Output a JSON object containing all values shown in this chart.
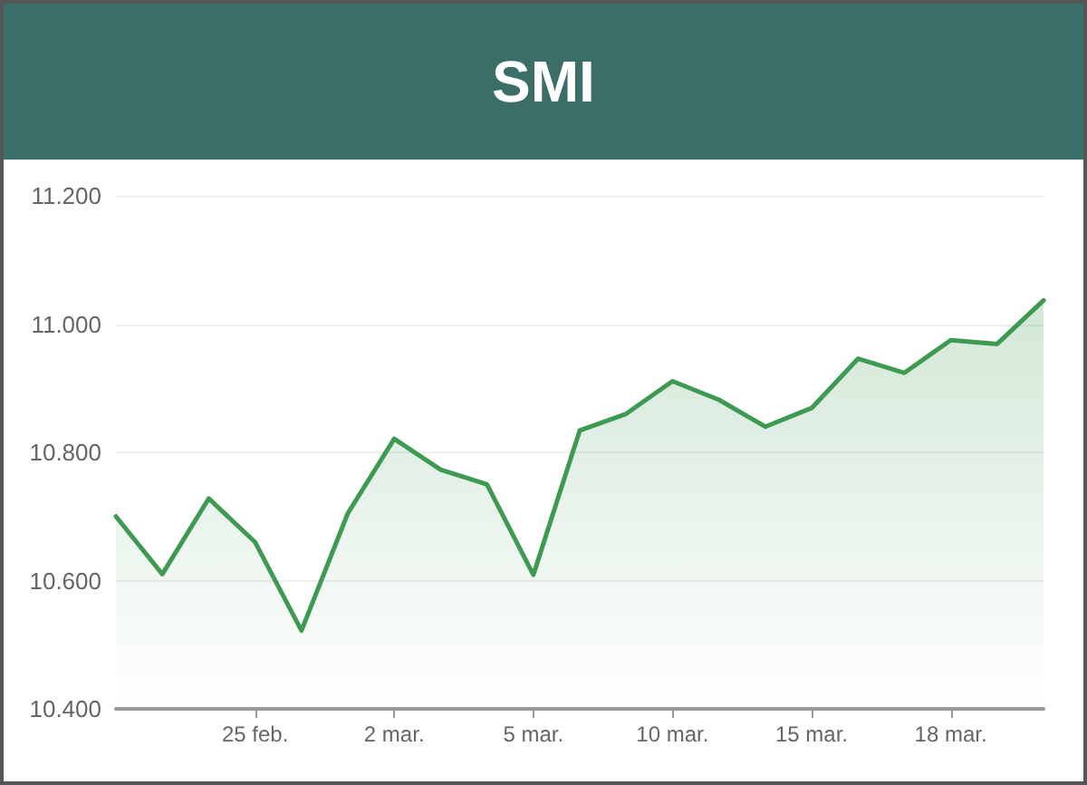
{
  "chart_data": {
    "type": "area",
    "title": "SMI",
    "categories": [
      null,
      null,
      null,
      "25 feb.",
      null,
      null,
      "2 mar.",
      null,
      null,
      "5 mar.",
      null,
      null,
      "10 mar.",
      null,
      null,
      "15 mar.",
      null,
      null,
      "18 mar.",
      null,
      null
    ],
    "series": [
      {
        "color": "#3e9a52",
        "values": [
          10700,
          10610,
          10728,
          10660,
          10522,
          10705,
          10821,
          10773,
          10750,
          10609,
          10834,
          10860,
          10911,
          10882,
          10840,
          10869,
          10946,
          10924,
          10975,
          10969,
          11037
        ]
      }
    ],
    "ylim": [
      10400,
      11200
    ],
    "yticks": [
      {
        "value": 10400,
        "label": "10.400"
      },
      {
        "value": 10600,
        "label": "10.600"
      },
      {
        "value": 10800,
        "label": "10.800"
      },
      {
        "value": 11000,
        "label": "11.000"
      },
      {
        "value": 11200,
        "label": "11.200"
      }
    ],
    "grid": "y",
    "marker": "none",
    "line_style": "solid"
  }
}
